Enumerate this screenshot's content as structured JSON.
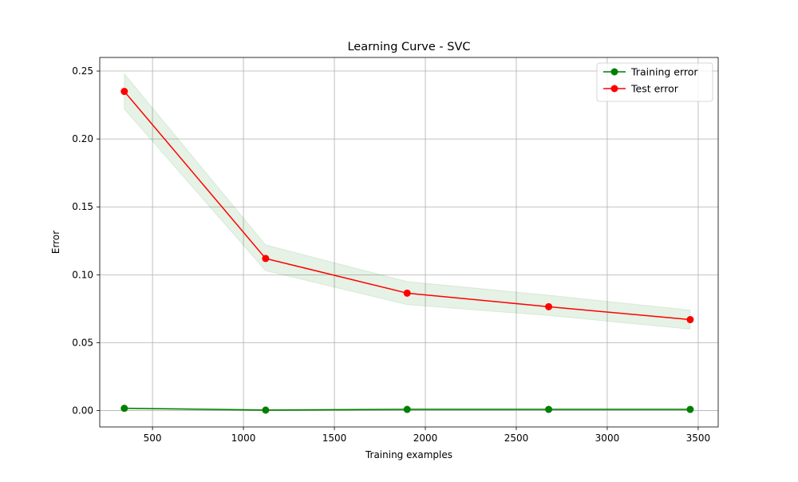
{
  "chart_data": {
    "type": "line",
    "title": "Learning Curve - SVC",
    "xlabel": "Training examples",
    "ylabel": "Error",
    "xlim": [
      210,
      3610
    ],
    "ylim": [
      -0.012,
      0.26
    ],
    "x_ticks": [
      500,
      1000,
      1500,
      2000,
      2500,
      3000,
      3500
    ],
    "y_ticks": [
      0.0,
      0.05,
      0.1,
      0.15,
      0.2,
      0.25
    ],
    "y_tick_labels": [
      "0.00",
      "0.05",
      "0.10",
      "0.15",
      "0.20",
      "0.25"
    ],
    "grid": true,
    "legend_position": "top-right",
    "x": [
      345,
      1122,
      1900,
      2678,
      3456
    ],
    "series": [
      {
        "name": "Training error",
        "color": "#008000",
        "values": [
          0.0017,
          0.0004,
          0.0009,
          0.0009,
          0.0009
        ],
        "band_lower": [
          0.0012,
          0.0,
          0.0003,
          0.0004,
          0.0004
        ],
        "band_upper": [
          0.0022,
          0.0009,
          0.0015,
          0.0014,
          0.0014
        ],
        "band_color": "#008000"
      },
      {
        "name": "Test error",
        "color": "#ff0000",
        "values": [
          0.235,
          0.112,
          0.0865,
          0.0765,
          0.067
        ],
        "band_lower": [
          0.222,
          0.103,
          0.078,
          0.07,
          0.06
        ],
        "band_upper": [
          0.248,
          0.122,
          0.095,
          0.085,
          0.074
        ],
        "band_color": "#008000"
      }
    ]
  }
}
